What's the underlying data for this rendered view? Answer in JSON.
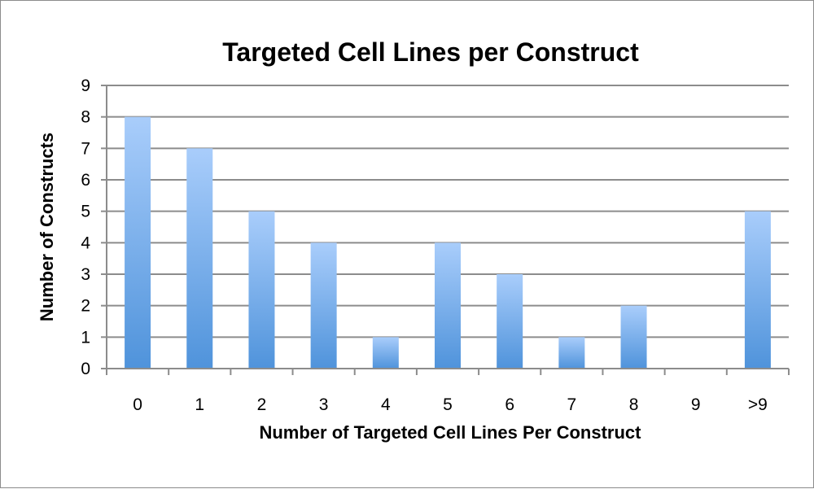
{
  "chart_data": {
    "type": "bar",
    "title": "Targeted Cell Lines per Construct",
    "xlabel": "Number of Targeted Cell Lines Per Construct",
    "ylabel": "Number of Constructs",
    "categories": [
      "0",
      "1",
      "2",
      "3",
      "4",
      "5",
      "6",
      "7",
      "8",
      "9",
      ">9"
    ],
    "values": [
      8,
      7,
      5,
      4,
      1,
      4,
      3,
      1,
      2,
      0,
      5
    ],
    "ylim": [
      0,
      9
    ],
    "yticks": [
      "0",
      "1",
      "2",
      "3",
      "4",
      "5",
      "6",
      "7",
      "8",
      "9"
    ],
    "grid": true,
    "legend": "none",
    "colors": {
      "bar_top": "#a9cdfb",
      "bar_bottom": "#4f93db",
      "grid": "#8c8c8c"
    }
  }
}
